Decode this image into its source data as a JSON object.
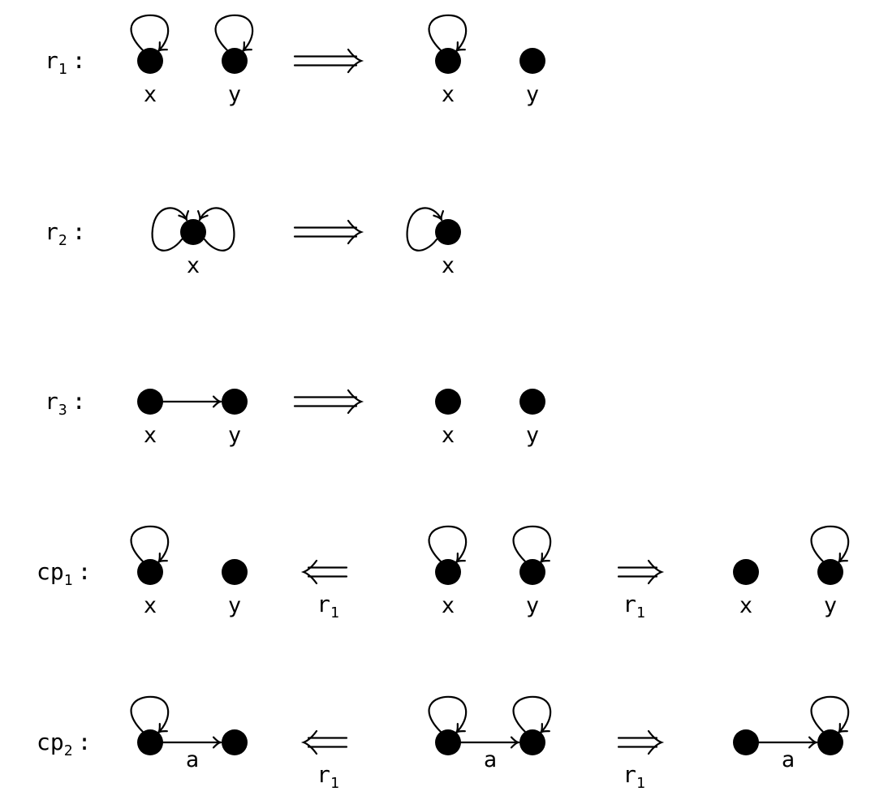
{
  "rows": [
    {
      "id": "r1",
      "label": {
        "base": "r",
        "sub": "1",
        "colon": ":"
      },
      "arrow": {
        "direction": "right",
        "style": "long"
      },
      "left": {
        "nodes": [
          {
            "id": "x",
            "label": "x",
            "loops": [
              "top"
            ]
          },
          {
            "id": "y",
            "label": "y",
            "loops": [
              "top"
            ]
          }
        ],
        "edges": []
      },
      "right": {
        "nodes": [
          {
            "id": "x",
            "label": "x",
            "loops": [
              "top"
            ]
          },
          {
            "id": "y",
            "label": "y",
            "loops": []
          }
        ],
        "edges": []
      }
    },
    {
      "id": "r2",
      "label": {
        "base": "r",
        "sub": "2",
        "colon": ":"
      },
      "arrow": {
        "direction": "right",
        "style": "long"
      },
      "left": {
        "nodes": [
          {
            "id": "x",
            "label": "x",
            "loops": [
              "left",
              "right"
            ]
          }
        ],
        "edges": []
      },
      "right": {
        "nodes": [
          {
            "id": "x",
            "label": "x",
            "loops": [
              "left"
            ]
          }
        ],
        "edges": []
      }
    },
    {
      "id": "r3",
      "label": {
        "base": "r",
        "sub": "3",
        "colon": ":"
      },
      "arrow": {
        "direction": "right",
        "style": "long"
      },
      "left": {
        "nodes": [
          {
            "id": "x",
            "label": "x",
            "loops": []
          },
          {
            "id": "y",
            "label": "y",
            "loops": []
          }
        ],
        "edges": [
          {
            "from": "x",
            "to": "y",
            "label": ""
          }
        ]
      },
      "right": {
        "nodes": [
          {
            "id": "x",
            "label": "x",
            "loops": []
          },
          {
            "id": "y",
            "label": "y",
            "loops": []
          }
        ],
        "edges": []
      }
    },
    {
      "id": "cp1",
      "label": {
        "base": "cp",
        "sub": "1",
        "colon": ":"
      },
      "left": {
        "nodes": [
          {
            "id": "x",
            "label": "x",
            "loops": [
              "top"
            ]
          },
          {
            "id": "y",
            "label": "y",
            "loops": []
          }
        ],
        "edges": []
      },
      "left_arrow": {
        "direction": "left",
        "rule": {
          "base": "r",
          "sub": "1"
        }
      },
      "middle": {
        "nodes": [
          {
            "id": "x",
            "label": "x",
            "loops": [
              "top"
            ]
          },
          {
            "id": "y",
            "label": "y",
            "loops": [
              "top"
            ]
          }
        ],
        "edges": []
      },
      "right_arrow": {
        "direction": "right",
        "rule": {
          "base": "r",
          "sub": "1"
        }
      },
      "right": {
        "nodes": [
          {
            "id": "x",
            "label": "x",
            "loops": []
          },
          {
            "id": "y",
            "label": "y",
            "loops": [
              "top"
            ]
          }
        ],
        "edges": []
      }
    },
    {
      "id": "cp2",
      "label": {
        "base": "cp",
        "sub": "2",
        "colon": ":"
      },
      "left": {
        "nodes": [
          {
            "id": "x",
            "label": "",
            "loops": [
              "top"
            ]
          },
          {
            "id": "y",
            "label": "",
            "loops": []
          }
        ],
        "edges": [
          {
            "from": "x",
            "to": "y",
            "label": "a"
          }
        ]
      },
      "left_arrow": {
        "direction": "left",
        "rule": {
          "base": "r",
          "sub": "1"
        }
      },
      "middle": {
        "nodes": [
          {
            "id": "x",
            "label": "",
            "loops": [
              "top"
            ]
          },
          {
            "id": "y",
            "label": "",
            "loops": [
              "top"
            ]
          }
        ],
        "edges": [
          {
            "from": "x",
            "to": "y",
            "label": "a"
          }
        ]
      },
      "right_arrow": {
        "direction": "right",
        "rule": {
          "base": "r",
          "sub": "1"
        }
      },
      "right": {
        "nodes": [
          {
            "id": "x",
            "label": "",
            "loops": []
          },
          {
            "id": "y",
            "label": "",
            "loops": [
              "top"
            ]
          }
        ],
        "edges": [
          {
            "from": "x",
            "to": "y",
            "label": "a"
          }
        ]
      }
    }
  ],
  "colors": {
    "ink": "#000000",
    "background": "#ffffff"
  }
}
